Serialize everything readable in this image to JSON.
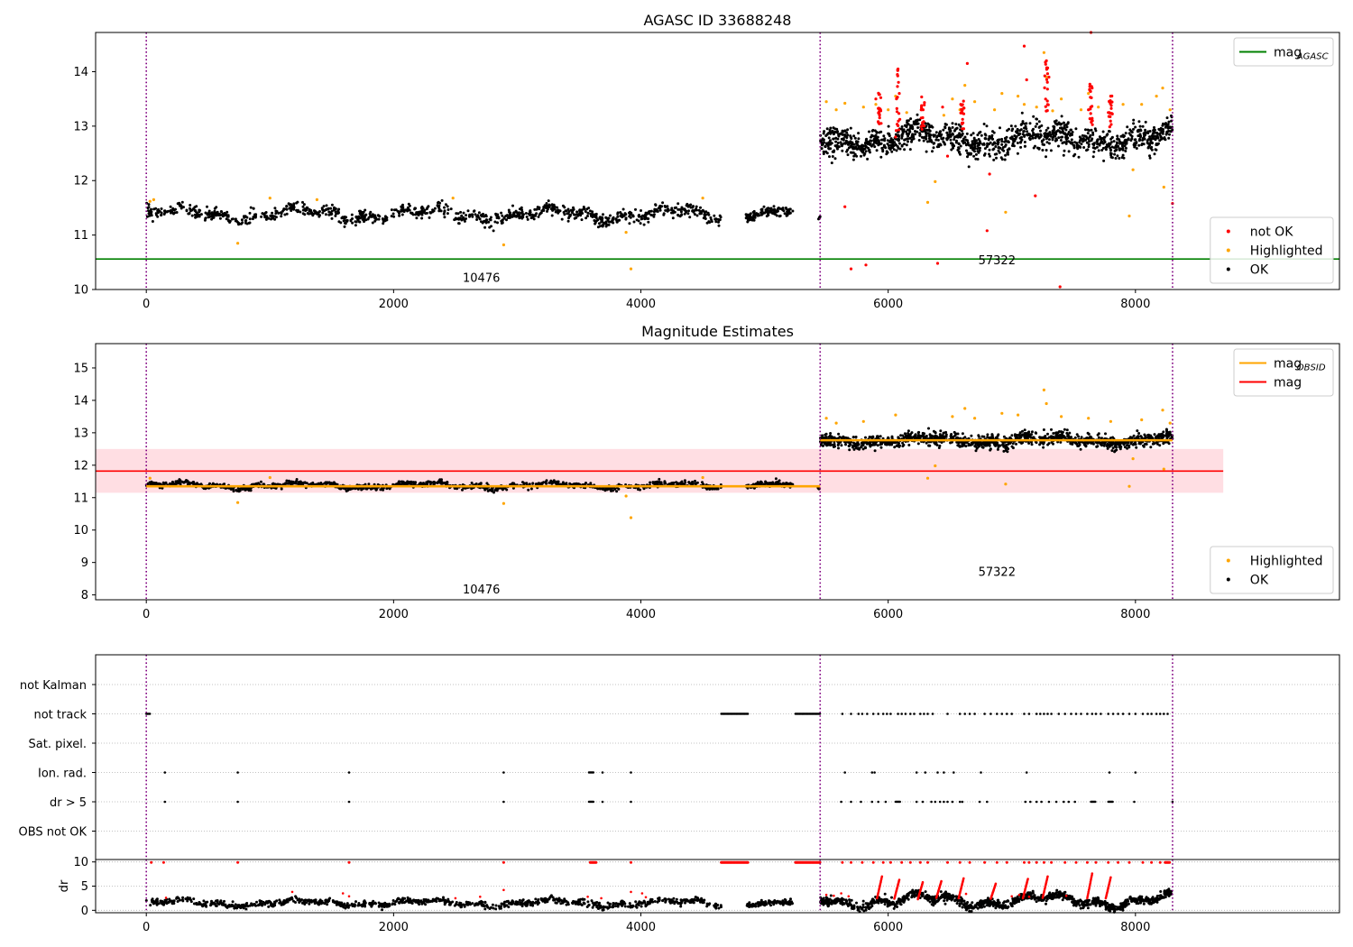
{
  "figure": {
    "colors": {
      "ok": "#000000",
      "highlighted": "#ffa500",
      "not_ok": "#ff0000",
      "mag_agasc": "#008000",
      "mag_obsid": "#ffa500",
      "mag": "#ff0000",
      "band": "#ffb6c1",
      "obsid_line": "#800080"
    }
  },
  "chart_data": [
    {
      "type": "scatter",
      "name": "top",
      "title": "AGASC ID 33688248",
      "xlabel": "",
      "ylabel": "",
      "xlim": [
        -410,
        9650
      ],
      "ylim": [
        10,
        14.72
      ],
      "xticks": [
        0,
        2000,
        4000,
        6000,
        8000
      ],
      "yticks": [
        10,
        11,
        12,
        13,
        14
      ],
      "obsid_boundaries": [
        0,
        5450,
        8300
      ],
      "obsid_labels": [
        {
          "text": "10476",
          "x": 2710,
          "y": 10.22
        },
        {
          "text": "57322",
          "x": 6880,
          "y": 10.55
        }
      ],
      "lines": [
        {
          "name": "mag_AGASC",
          "y": 10.56,
          "x": [
            -410,
            9650
          ],
          "color": "#008000"
        }
      ],
      "segments": [
        {
          "x0": 0,
          "x1": 4650,
          "mean": 11.38,
          "spread": 0.08,
          "wave": 0.09,
          "n": 1000
        },
        {
          "x0": 4850,
          "x1": 5230,
          "mean": 11.4,
          "spread": 0.07,
          "wave": 0.05,
          "n": 110
        },
        {
          "x0": 5430,
          "x1": 5450,
          "mean": 11.3,
          "spread": 0.04,
          "wave": 0,
          "n": 6
        },
        {
          "x0": 5450,
          "x1": 8300,
          "mean": 12.76,
          "spread": 0.18,
          "wave": 0.1,
          "n": 1250
        }
      ],
      "highlighted": [
        [
          30,
          11.62
        ],
        [
          60,
          11.65
        ],
        [
          740,
          10.85
        ],
        [
          1000,
          11.68
        ],
        [
          1380,
          11.65
        ],
        [
          2480,
          11.68
        ],
        [
          2890,
          10.82
        ],
        [
          3880,
          11.05
        ],
        [
          3920,
          10.38
        ],
        [
          4500,
          11.68
        ],
        [
          5500,
          13.45
        ],
        [
          5580,
          13.3
        ],
        [
          5650,
          13.42
        ],
        [
          5800,
          13.35
        ],
        [
          5900,
          13.4
        ],
        [
          6000,
          13.3
        ],
        [
          6060,
          13.55
        ],
        [
          6150,
          13.25
        ],
        [
          6320,
          11.6
        ],
        [
          6380,
          11.98
        ],
        [
          6450,
          13.2
        ],
        [
          6520,
          13.5
        ],
        [
          6580,
          13.3
        ],
        [
          6620,
          13.75
        ],
        [
          6700,
          13.45
        ],
        [
          6860,
          13.3
        ],
        [
          6920,
          13.6
        ],
        [
          6950,
          11.42
        ],
        [
          7050,
          13.55
        ],
        [
          7100,
          13.4
        ],
        [
          7200,
          13.35
        ],
        [
          7260,
          14.35
        ],
        [
          7280,
          13.9
        ],
        [
          7330,
          13.28
        ],
        [
          7400,
          13.5
        ],
        [
          7560,
          13.3
        ],
        [
          7620,
          13.6
        ],
        [
          7700,
          13.35
        ],
        [
          7800,
          13.55
        ],
        [
          7900,
          13.4
        ],
        [
          7950,
          11.35
        ],
        [
          7980,
          12.2
        ],
        [
          8050,
          13.4
        ],
        [
          8170,
          13.55
        ],
        [
          8220,
          13.7
        ],
        [
          8230,
          11.88
        ],
        [
          8280,
          13.3
        ]
      ],
      "not_ok": [
        [
          5650,
          11.52
        ],
        [
          5700,
          10.38
        ],
        [
          5820,
          10.45
        ],
        [
          5900,
          13.5
        ],
        [
          5930,
          13.2
        ],
        [
          6080,
          14.05
        ],
        [
          6090,
          13.6
        ],
        [
          6060,
          12.8
        ],
        [
          6400,
          10.48
        ],
        [
          6440,
          13.35
        ],
        [
          6480,
          12.45
        ],
        [
          6600,
          13.3
        ],
        [
          6640,
          14.15
        ],
        [
          6800,
          11.08
        ],
        [
          6820,
          12.12
        ],
        [
          7100,
          14.47
        ],
        [
          7120,
          13.85
        ],
        [
          7190,
          11.72
        ],
        [
          7280,
          14.2
        ],
        [
          7300,
          13.9
        ],
        [
          7390,
          10.05
        ],
        [
          7640,
          14.72
        ],
        [
          7650,
          13.7
        ],
        [
          7620,
          13.3
        ],
        [
          7800,
          13.55
        ],
        [
          7780,
          13.25
        ],
        [
          8300,
          11.58
        ]
      ],
      "not_ok_clusters": [
        {
          "x": 5930,
          "y0": 13.0,
          "y1": 13.62
        },
        {
          "x": 6080,
          "y0": 12.9,
          "y1": 14.05
        },
        {
          "x": 6280,
          "y0": 12.9,
          "y1": 13.6
        },
        {
          "x": 6600,
          "y0": 12.95,
          "y1": 13.5
        },
        {
          "x": 7280,
          "y0": 13.05,
          "y1": 14.2
        },
        {
          "x": 7640,
          "y0": 12.95,
          "y1": 13.8
        },
        {
          "x": 7800,
          "y0": 12.95,
          "y1": 13.6
        }
      ],
      "legends": [
        {
          "position": "upper right",
          "entries": [
            {
              "label": "mag",
              "sub": "AGASC",
              "kind": "line",
              "color": "#008000"
            }
          ]
        },
        {
          "position": "lower right",
          "entries": [
            {
              "label": "not OK",
              "kind": "dot",
              "color": "#ff0000"
            },
            {
              "label": "Highlighted",
              "kind": "dot",
              "color": "#ffa500"
            },
            {
              "label": "OK",
              "kind": "dot",
              "color": "#000000"
            }
          ]
        }
      ]
    },
    {
      "type": "scatter",
      "name": "middle",
      "title": "Magnitude Estimates",
      "xlabel": "",
      "ylabel": "",
      "xlim": [
        -410,
        9650
      ],
      "ylim": [
        7.85,
        15.75
      ],
      "xticks": [
        0,
        2000,
        4000,
        6000,
        8000
      ],
      "yticks": [
        8,
        9,
        10,
        11,
        12,
        13,
        14,
        15
      ],
      "obsid_boundaries": [
        0,
        5450,
        8300
      ],
      "obsid_labels": [
        {
          "text": "10476",
          "x": 2710,
          "y": 8.18
        },
        {
          "text": "57322",
          "x": 6880,
          "y": 8.72
        }
      ],
      "band": {
        "x0": -410,
        "x1": 8710,
        "y0": 11.15,
        "y1": 12.5,
        "color": "#ffb6c1"
      },
      "lines": [
        {
          "name": "mag",
          "y": 11.82,
          "x": [
            -410,
            8710
          ],
          "color": "#ff0000"
        },
        {
          "name": "mag_OBSID",
          "y": 11.35,
          "x": [
            0,
            5450
          ],
          "color": "#ffa500"
        },
        {
          "name": "mag_OBSID",
          "y": 12.77,
          "x": [
            5450,
            8300
          ],
          "color": "#ffa500"
        }
      ],
      "segments": [
        {
          "x0": 0,
          "x1": 4650,
          "mean": 11.37,
          "spread": 0.06,
          "wave": 0.07,
          "n": 1000
        },
        {
          "x0": 4850,
          "x1": 5230,
          "mean": 11.4,
          "spread": 0.06,
          "wave": 0.04,
          "n": 110
        },
        {
          "x0": 5430,
          "x1": 5450,
          "mean": 11.3,
          "spread": 0.04,
          "wave": 0,
          "n": 6
        },
        {
          "x0": 5450,
          "x1": 8300,
          "mean": 12.77,
          "spread": 0.14,
          "wave": 0.08,
          "n": 1250
        }
      ],
      "highlighted": [
        [
          30,
          11.6
        ],
        [
          740,
          10.85
        ],
        [
          1000,
          11.62
        ],
        [
          2890,
          10.82
        ],
        [
          3880,
          11.05
        ],
        [
          3920,
          10.38
        ],
        [
          4500,
          11.62
        ],
        [
          5500,
          13.45
        ],
        [
          5580,
          13.3
        ],
        [
          5800,
          13.35
        ],
        [
          6060,
          13.55
        ],
        [
          6320,
          11.6
        ],
        [
          6380,
          11.98
        ],
        [
          6520,
          13.5
        ],
        [
          6620,
          13.75
        ],
        [
          6700,
          13.45
        ],
        [
          6920,
          13.6
        ],
        [
          6950,
          11.42
        ],
        [
          7050,
          13.55
        ],
        [
          7260,
          14.32
        ],
        [
          7280,
          13.9
        ],
        [
          7400,
          13.5
        ],
        [
          7620,
          13.45
        ],
        [
          7800,
          13.35
        ],
        [
          7950,
          11.35
        ],
        [
          7980,
          12.2
        ],
        [
          8050,
          13.4
        ],
        [
          8220,
          13.7
        ],
        [
          8230,
          11.88
        ],
        [
          8280,
          13.3
        ]
      ],
      "legends": [
        {
          "position": "upper right",
          "entries": [
            {
              "label": "mag",
              "sub": "OBSID",
              "kind": "line",
              "color": "#ffa500"
            },
            {
              "label": "mag",
              "kind": "line",
              "color": "#ff0000"
            }
          ]
        },
        {
          "position": "lower right",
          "entries": [
            {
              "label": "Highlighted",
              "kind": "dot",
              "color": "#ffa500"
            },
            {
              "label": "OK",
              "kind": "dot",
              "color": "#000000"
            }
          ]
        }
      ]
    },
    {
      "type": "scatter",
      "name": "flags",
      "title": "",
      "xlabel": "",
      "ylabel": "",
      "xlim": [
        -410,
        9650
      ],
      "categories": [
        "not Kalman",
        "not track",
        "Sat. pixel.",
        "Ion. rad.",
        "dr > 5",
        "OBS not OK"
      ],
      "obsid_boundaries": [
        0,
        5450,
        8300
      ],
      "rows": [
        {
          "category": "not track",
          "ranges": [
            [
              0,
              30
            ],
            [
              4650,
              4870
            ],
            [
              5250,
              5450
            ]
          ],
          "points": [
            5630,
            5700,
            5760,
            5790,
            5830,
            5880,
            5920,
            5960,
            5990,
            6020,
            6080,
            6110,
            6140,
            6180,
            6210,
            6260,
            6290,
            6320,
            6360,
            6480,
            6580,
            6620,
            6660,
            6700,
            6780,
            6830,
            6880,
            6920,
            6960,
            7000,
            7100,
            7140,
            7200,
            7230,
            7260,
            7290,
            7320,
            7380,
            7430,
            7480,
            7520,
            7560,
            7610,
            7650,
            7680,
            7720,
            7780,
            7820,
            7860,
            7900,
            7950,
            8000,
            8060,
            8100,
            8130,
            8170,
            8200,
            8230,
            8260
          ]
        },
        {
          "category": "Ion. rad.",
          "ranges": [
            [
              3580,
              3620
            ]
          ],
          "points": [
            150,
            740,
            1640,
            2890,
            3690,
            3920,
            5650,
            5870,
            5890,
            6230,
            6300,
            6400,
            6450,
            6530,
            6750,
            7120,
            7790,
            8000
          ]
        },
        {
          "category": "dr > 5",
          "ranges": [
            [
              3580,
              3620
            ],
            [
              6060,
              6100
            ],
            [
              7640,
              7680
            ],
            [
              7780,
              7820
            ]
          ],
          "points": [
            150,
            740,
            1640,
            2890,
            3690,
            3920,
            5620,
            5700,
            5780,
            5870,
            5920,
            5980,
            6230,
            6280,
            6350,
            6380,
            6420,
            6450,
            6480,
            6520,
            6580,
            6600,
            6740,
            6800,
            7110,
            7150,
            7200,
            7240,
            7300,
            7360,
            7420,
            7460,
            7510,
            7990,
            8300
          ]
        }
      ]
    },
    {
      "type": "scatter",
      "name": "dr",
      "title": "",
      "xlabel": "",
      "ylabel": "dr",
      "xlim": [
        -410,
        9650
      ],
      "ylim": [
        -0.5,
        10.5
      ],
      "xticks": [
        0,
        2000,
        4000,
        6000,
        8000
      ],
      "yticks": [
        0,
        5,
        10
      ],
      "segments": [
        {
          "x0": 0,
          "x1": 4650,
          "mean": 1.5,
          "spread": 0.45,
          "wave": 0.5,
          "n": 900
        },
        {
          "x0": 4850,
          "x1": 5230,
          "mean": 1.5,
          "spread": 0.4,
          "wave": 0.3,
          "n": 100
        },
        {
          "x0": 5450,
          "x1": 8300,
          "mean": 2.0,
          "spread": 0.6,
          "wave": 1.0,
          "n": 1100
        }
      ],
      "high_points": [
        [
          40,
          9.9
        ],
        [
          140,
          9.9
        ],
        [
          740,
          9.9
        ],
        [
          1640,
          9.9
        ],
        [
          2890,
          9.9
        ],
        [
          3920,
          9.9
        ],
        [
          5630,
          9.9
        ],
        [
          5700,
          9.9
        ],
        [
          5790,
          9.9
        ],
        [
          5880,
          9.9
        ],
        [
          5960,
          9.9
        ],
        [
          6020,
          9.9
        ],
        [
          6110,
          9.9
        ],
        [
          6180,
          9.9
        ],
        [
          6260,
          9.9
        ],
        [
          6320,
          9.9
        ],
        [
          6480,
          9.9
        ],
        [
          6580,
          9.9
        ],
        [
          6660,
          9.9
        ],
        [
          6780,
          9.9
        ],
        [
          6880,
          9.9
        ],
        [
          6960,
          9.9
        ],
        [
          7100,
          9.9
        ],
        [
          7140,
          9.9
        ],
        [
          7200,
          9.9
        ],
        [
          7260,
          9.9
        ],
        [
          7320,
          9.9
        ],
        [
          7430,
          9.9
        ],
        [
          7520,
          9.9
        ],
        [
          7610,
          9.9
        ],
        [
          7680,
          9.9
        ],
        [
          7780,
          9.9
        ],
        [
          7860,
          9.9
        ],
        [
          7950,
          9.9
        ],
        [
          8060,
          9.9
        ],
        [
          8130,
          9.9
        ],
        [
          8200,
          9.9
        ]
      ],
      "high_ranges": [
        [
          3590,
          3640
        ],
        [
          4650,
          4870
        ],
        [
          5250,
          5450
        ],
        [
          8240,
          8280
        ]
      ],
      "red_mid": [
        [
          160,
          2.6
        ],
        [
          1180,
          3.8
        ],
        [
          1590,
          3.5
        ],
        [
          1640,
          2.9
        ],
        [
          2500,
          2.5
        ],
        [
          2700,
          2.8
        ],
        [
          2890,
          4.2
        ],
        [
          3570,
          2.8
        ],
        [
          3680,
          2.5
        ],
        [
          3920,
          3.8
        ],
        [
          4010,
          3.5
        ],
        [
          4040,
          2.7
        ],
        [
          5500,
          3.2
        ],
        [
          5560,
          3.0
        ],
        [
          5620,
          3.5
        ],
        [
          5680,
          2.9
        ],
        [
          6630,
          3.4
        ],
        [
          7000,
          2.9
        ],
        [
          7060,
          3.2
        ],
        [
          7140,
          2.8
        ],
        [
          7440,
          3.0
        ]
      ],
      "red_spikes": [
        {
          "x": 5940,
          "y0": 2.5,
          "y1": 7.0
        },
        {
          "x": 6080,
          "y0": 2.4,
          "y1": 6.3
        },
        {
          "x": 6270,
          "y0": 2.3,
          "y1": 5.8
        },
        {
          "x": 6420,
          "y0": 2.6,
          "y1": 6.0
        },
        {
          "x": 6600,
          "y0": 2.5,
          "y1": 6.6
        },
        {
          "x": 6860,
          "y0": 2.4,
          "y1": 5.5
        },
        {
          "x": 7120,
          "y0": 2.5,
          "y1": 6.5
        },
        {
          "x": 7280,
          "y0": 2.6,
          "y1": 7.0
        },
        {
          "x": 7640,
          "y0": 2.5,
          "y1": 7.6
        },
        {
          "x": 7790,
          "y0": 2.5,
          "y1": 6.8
        }
      ]
    }
  ]
}
